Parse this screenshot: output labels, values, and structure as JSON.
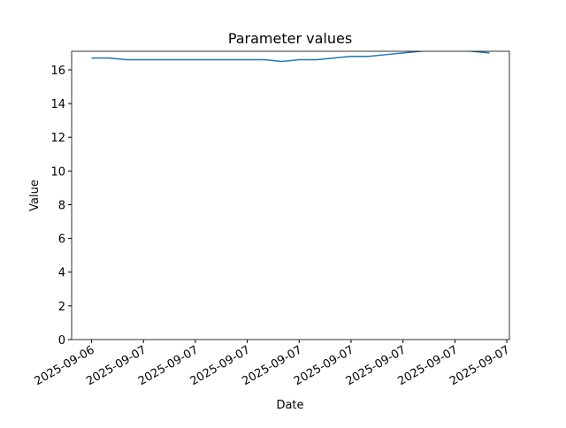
{
  "chart_data": {
    "type": "line",
    "title": "Parameter values",
    "x_label": "Date",
    "y_label": "Value",
    "x": [
      0,
      1,
      2,
      3,
      4,
      5,
      6,
      7,
      8,
      9,
      10,
      11,
      12,
      13,
      14,
      15,
      16,
      17,
      18,
      19,
      20,
      21,
      22,
      23
    ],
    "series": [
      {
        "name": "Value",
        "color": "#1f77b4",
        "values": [
          16.7,
          16.7,
          16.6,
          16.6,
          16.6,
          16.6,
          16.6,
          16.6,
          16.6,
          16.6,
          16.6,
          16.5,
          16.6,
          16.6,
          16.7,
          16.8,
          16.8,
          16.9,
          17.0,
          17.1,
          17.2,
          17.2,
          17.1,
          17.0
        ]
      }
    ],
    "xlim": [
      -1.15,
      24.15
    ],
    "xticks": [
      {
        "value": 0,
        "label": "2025-09-06"
      },
      {
        "value": 3,
        "label": "2025-09-07"
      },
      {
        "value": 6,
        "label": "2025-09-07"
      },
      {
        "value": 9,
        "label": "2025-09-07"
      },
      {
        "value": 12,
        "label": "2025-09-07"
      },
      {
        "value": 15,
        "label": "2025-09-07"
      },
      {
        "value": 18,
        "label": "2025-09-07"
      },
      {
        "value": 21,
        "label": "2025-09-07"
      },
      {
        "value": 24,
        "label": "2025-09-07"
      }
    ],
    "ylim": [
      0,
      17.1
    ],
    "yticks": [
      0,
      2,
      4,
      6,
      8,
      10,
      12,
      14,
      16
    ]
  }
}
